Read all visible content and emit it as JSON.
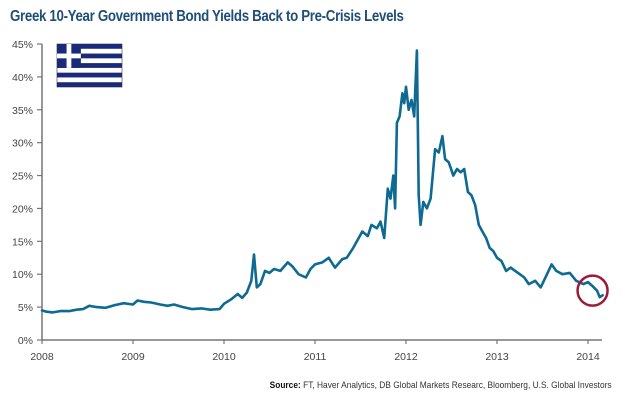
{
  "title": "Greek 10-Year Government Bond Yields Back to Pre-Crisis Levels",
  "source_label": "Source:",
  "source_text": " FT, Haver Analytics, DB Global Markets Researc, Bloomberg, U.S. Global Investors",
  "flag": "greece-flag",
  "colors": {
    "line": "#0e6a93",
    "highlight_circle": "#9b1b3a",
    "axis": "#777777",
    "title": "#1f4e79",
    "flag_blue": "#1b2a78"
  },
  "chart_data": {
    "type": "line",
    "title": "Greek 10-Year Government Bond Yields Back to Pre-Crisis Levels",
    "xlabel": "",
    "ylabel": "",
    "xlim": [
      2008,
      2014.2
    ],
    "ylim": [
      0,
      45
    ],
    "x_ticks": [
      "2008",
      "2009",
      "2010",
      "2011",
      "2012",
      "2013",
      "2014"
    ],
    "y_ticks": [
      "0%",
      "5%",
      "10%",
      "15%",
      "20%",
      "25%",
      "30%",
      "35%",
      "40%",
      "45%"
    ],
    "grid": false,
    "legend": "none",
    "annotation": "circle highlighting early-2014 yields (~6.5-9%)",
    "series": [
      {
        "name": "Greek 10-Year Government Bond Yield (%)",
        "x": [
          2008.0,
          2008.05,
          2008.12,
          2008.2,
          2008.3,
          2008.38,
          2008.45,
          2008.52,
          2008.6,
          2008.7,
          2008.8,
          2008.9,
          2009.0,
          2009.05,
          2009.12,
          2009.2,
          2009.3,
          2009.38,
          2009.45,
          2009.55,
          2009.65,
          2009.75,
          2009.85,
          2009.95,
          2010.0,
          2010.08,
          2010.15,
          2010.2,
          2010.25,
          2010.3,
          2010.33,
          2010.36,
          2010.4,
          2010.45,
          2010.5,
          2010.55,
          2010.62,
          2010.7,
          2010.75,
          2010.82,
          2010.9,
          2010.95,
          2011.0,
          2011.08,
          2011.15,
          2011.22,
          2011.3,
          2011.35,
          2011.42,
          2011.48,
          2011.52,
          2011.58,
          2011.62,
          2011.68,
          2011.72,
          2011.76,
          2011.8,
          2011.83,
          2011.86,
          2011.88,
          2011.9,
          2011.93,
          2011.96,
          2011.98,
          2012.0,
          2012.03,
          2012.06,
          2012.09,
          2012.12,
          2012.14,
          2012.16,
          2012.19,
          2012.23,
          2012.27,
          2012.32,
          2012.36,
          2012.4,
          2012.43,
          2012.47,
          2012.52,
          2012.56,
          2012.6,
          2012.64,
          2012.68,
          2012.72,
          2012.76,
          2012.8,
          2012.84,
          2012.88,
          2012.92,
          2012.96,
          2013.0,
          2013.05,
          2013.1,
          2013.15,
          2013.2,
          2013.25,
          2013.3,
          2013.35,
          2013.42,
          2013.48,
          2013.55,
          2013.6,
          2013.65,
          2013.72,
          2013.8,
          2013.87,
          2013.95,
          2014.0,
          2014.05,
          2014.1,
          2014.13,
          2014.16
        ],
        "y": [
          4.5,
          4.3,
          4.2,
          4.4,
          4.4,
          4.6,
          4.7,
          5.2,
          5.0,
          4.9,
          5.3,
          5.6,
          5.4,
          6.0,
          5.8,
          5.7,
          5.4,
          5.2,
          5.4,
          5.0,
          4.7,
          4.8,
          4.6,
          4.7,
          5.5,
          6.2,
          7.0,
          6.4,
          7.2,
          9.0,
          13.0,
          8.0,
          8.5,
          10.5,
          10.2,
          10.8,
          10.5,
          11.8,
          11.2,
          10.0,
          9.5,
          10.8,
          11.5,
          11.8,
          12.5,
          11.0,
          12.3,
          12.5,
          14.0,
          15.5,
          16.5,
          15.8,
          17.5,
          17.0,
          18.0,
          15.5,
          23.0,
          21.5,
          25.0,
          20.0,
          33.0,
          34.0,
          37.5,
          36.0,
          38.5,
          35.0,
          36.5,
          34.0,
          44.0,
          22.0,
          17.5,
          21.0,
          20.0,
          21.5,
          29.0,
          28.5,
          31.0,
          27.5,
          27.0,
          25.0,
          26.0,
          25.5,
          26.0,
          22.5,
          22.0,
          20.5,
          17.5,
          16.5,
          15.5,
          14.0,
          13.5,
          12.5,
          12.0,
          10.5,
          11.0,
          10.5,
          10.0,
          9.5,
          8.5,
          9.0,
          8.0,
          10.0,
          11.5,
          10.5,
          10.0,
          10.2,
          9.0,
          8.5,
          8.8,
          8.2,
          7.5,
          6.5,
          6.8
        ]
      }
    ]
  }
}
